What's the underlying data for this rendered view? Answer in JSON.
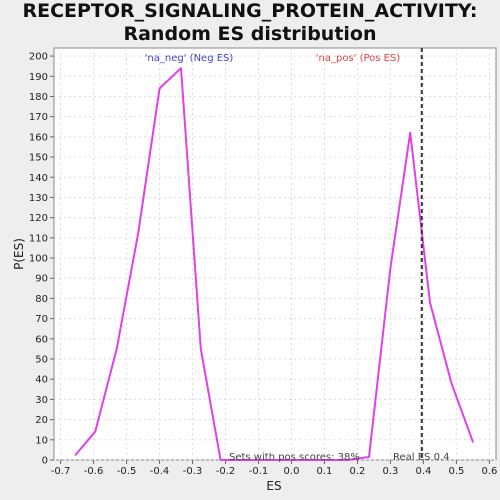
{
  "chart_data": {
    "type": "line",
    "title": "RECEPTOR_SIGNALING_PROTEIN_ACTIVITY: Random ES distribution",
    "xlabel": "ES",
    "ylabel": "P(ES)",
    "xlim": [
      -0.72,
      0.62
    ],
    "ylim": [
      0,
      204
    ],
    "grid": true,
    "x_ticks": [
      "-0.7",
      "-0.6",
      "-0.5",
      "-0.4",
      "-0.3",
      "-0.2",
      "-0.1",
      "0.0",
      "0.1",
      "0.2",
      "0.3",
      "0.4",
      "0.5",
      "0.6"
    ],
    "y_ticks": [
      "0",
      "10",
      "20",
      "30",
      "40",
      "50",
      "60",
      "70",
      "80",
      "90",
      "100",
      "110",
      "120",
      "130",
      "140",
      "150",
      "160",
      "170",
      "180",
      "190",
      "200"
    ],
    "series": [
      {
        "color": "#e040e8",
        "x": [
          -0.655,
          -0.595,
          -0.53,
          -0.465,
          -0.4,
          -0.335,
          -0.275,
          -0.215,
          -0.15,
          -0.09,
          -0.025,
          0.04,
          0.105,
          0.17,
          0.235,
          0.3,
          0.36,
          0.42,
          0.485,
          0.55
        ],
        "y": [
          2.5,
          14,
          55,
          112,
          184,
          194,
          55,
          0,
          0,
          0,
          0,
          0,
          0,
          0,
          1.5,
          95,
          162,
          78,
          38,
          9
        ]
      }
    ],
    "annotations": {
      "neg_label": "'na_neg' (Neg ES)",
      "pos_label": "'na_pos' (Pos ES)",
      "sets_text": "Sets with pos scores: 38%",
      "real_es_text": "Real ES 0.4",
      "real_es_value": 0.395,
      "neg_color": "#4444cc",
      "pos_color": "#dd4444"
    }
  }
}
